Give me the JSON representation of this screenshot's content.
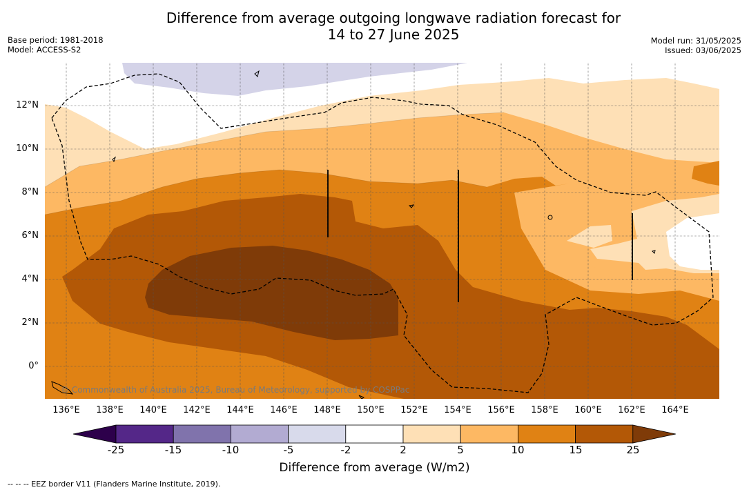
{
  "title_line1": "Difference from average outgoing longwave radiation forecast for",
  "title_line2": "14 to 27 June 2025",
  "meta_left": {
    "base_period": "Base period: 1981-2018",
    "model": "Model: ACCESS-S2"
  },
  "meta_right": {
    "model_run": "Model run: 31/05/2025",
    "issued": "Issued: 03/06/2025"
  },
  "map": {
    "lon_range": [
      135,
      166
    ],
    "lat_range": [
      -1.5,
      14
    ],
    "lat_labels": [
      "12°N",
      "10°N",
      "8°N",
      "6°N",
      "4°N",
      "2°N",
      "0°"
    ],
    "lon_labels": [
      "136°E",
      "138°E",
      "140°E",
      "142°E",
      "144°E",
      "146°E",
      "148°E",
      "150°E",
      "152°E",
      "154°E",
      "156°E",
      "158°E",
      "160°E",
      "162°E",
      "164°E"
    ],
    "copyright": "© Commonwealth of Australia 2025, Bureau of Meteorology, supported by COSPPac",
    "colors": {
      "lt_-2": "#d4d3e8",
      "2_5": "#fee0b6",
      "5_10": "#fdb863",
      "10_15": "#e08214",
      "15_25": "#b35806",
      "gt_25": "#7f3b08"
    }
  },
  "colorbar": {
    "ticks": [
      "-25",
      "-15",
      "-10",
      "-5",
      "-2",
      "2",
      "5",
      "10",
      "15",
      "25"
    ],
    "colors": [
      "#542788",
      "#8073ac",
      "#b2abd2",
      "#d8daeb",
      "#ffffff",
      "#fee0b6",
      "#fdb863",
      "#e08214",
      "#b35806"
    ],
    "under_color": "#2d004b",
    "over_color": "#7f3b08",
    "label": "Difference from average (W/m2)"
  },
  "footnote": "--  --  -- EEZ border V11 (Flanders Marine Institute, 2019)."
}
